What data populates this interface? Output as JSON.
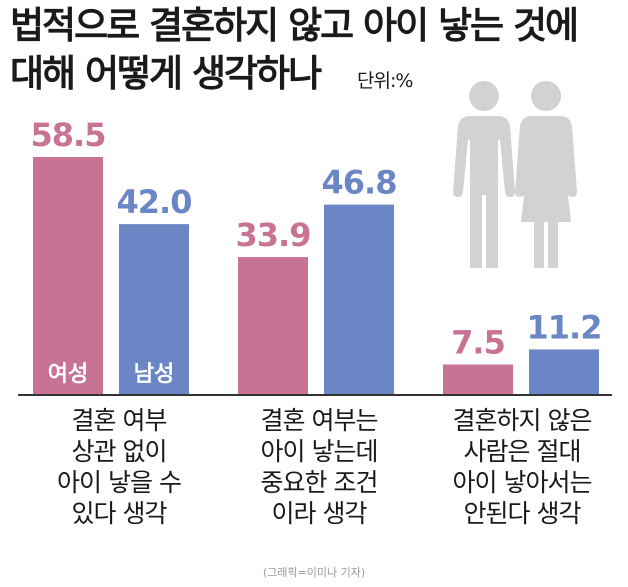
{
  "chart_data": {
    "type": "bar",
    "title_line1": "법적으로 결혼하지 않고 아이 낳는 것에",
    "title_line2": "대해 어떻게 생각하나",
    "unit": "단위:%",
    "categories": [
      [
        "결혼 여부",
        "상관 없이",
        "아이 낳을 수",
        "있다 생각"
      ],
      [
        "결혼 여부는",
        "아이 낳는데",
        "중요한 조건",
        "이라 생각"
      ],
      [
        "결혼하지 않은",
        "사람은 절대",
        "아이 낳아서는",
        "안된다 생각"
      ]
    ],
    "series": [
      {
        "name": "여성",
        "color": "#c97394",
        "values": [
          58.5,
          33.9,
          7.5
        ]
      },
      {
        "name": "남성",
        "color": "#6b86c4",
        "values": [
          42.0,
          46.8,
          11.2
        ]
      }
    ],
    "value_labels": [
      [
        "58.5",
        "33.9",
        "7.5"
      ],
      [
        "42.0",
        "46.8",
        "11.2"
      ]
    ],
    "ylim": [
      0,
      58.5
    ]
  },
  "credit": "(그래픽=이미나 기자)"
}
